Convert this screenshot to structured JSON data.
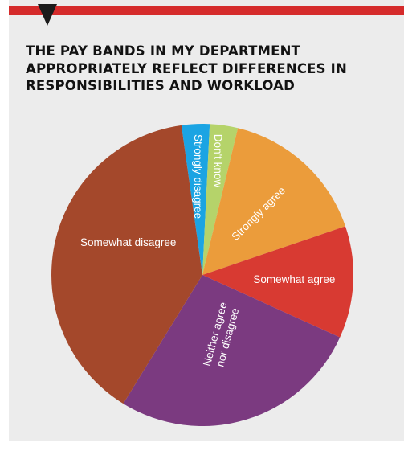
{
  "chart_data": {
    "type": "pie",
    "title": "THE PAY BANDS IN MY DEPARTMENT APPROPRIATELY REFLECT DIFFERENCES IN RESPONSIBILITIES AND WORKLOAD",
    "data_labels": "none",
    "start_angle_deg": -98,
    "direction": "clockwise",
    "slices": [
      {
        "label": "Strongly disagree",
        "value": 3,
        "color": "#1ba4e3"
      },
      {
        "label": "Don't know",
        "value": 3,
        "color": "#b5d36a"
      },
      {
        "label": "Strongly agree",
        "value": 16,
        "color": "#eb9c3b"
      },
      {
        "label": "Somewhat agree",
        "value": 12,
        "color": "#d83a32"
      },
      {
        "label": "Neither agree nor disagree",
        "value": 27,
        "color": "#7b3a80"
      },
      {
        "label": "Somewhat disagree",
        "value": 39,
        "color": "#a4482b"
      }
    ]
  },
  "colors": {
    "panel": "#ececec",
    "top_bar": "#d52b2b",
    "marker": "#1b1b1b",
    "title": "#121212",
    "slice_label": "#ffffff"
  }
}
